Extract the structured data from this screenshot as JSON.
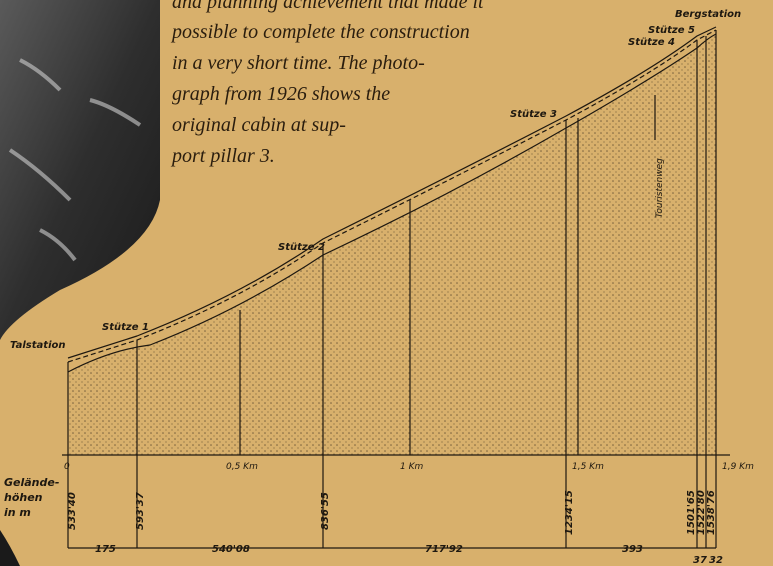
{
  "intro_lines": [
    "and planning achievement that made it",
    "possible to complete the construction",
    "in a very short time. The photo-",
    "graph from 1926 shows the",
    "original cabin at sup-",
    "port pillar 3."
  ],
  "stations": {
    "valley": "Talstation",
    "mountain": "Bergstation",
    "pillars": [
      "Stütze 1",
      "Stütze 2",
      "Stütze 3",
      "Stütze 4",
      "Stütze 5"
    ],
    "trail": "Touristenweg"
  },
  "distance_markers": [
    "0",
    "0,5 Km",
    "1 Km",
    "1,5 Km",
    "1,9 Km"
  ],
  "elevation_heading": [
    "Gelände-",
    "höhen",
    "in m"
  ],
  "elevations": [
    "533'40",
    "593'37",
    "836'55",
    "1234'15",
    "1501'65",
    "1522'80",
    "1538'76"
  ],
  "segment_lengths": [
    "175",
    "540'08",
    "717'92",
    "393",
    "37",
    "32"
  ]
}
